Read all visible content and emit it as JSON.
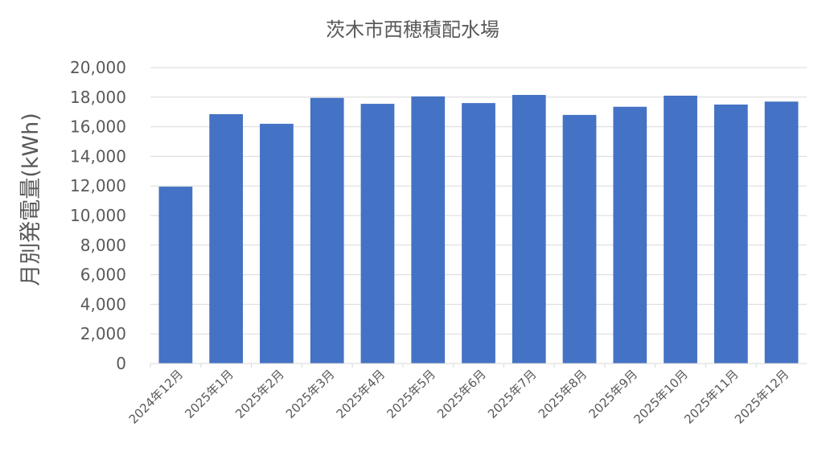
{
  "chart_data": {
    "type": "bar",
    "title": "茨木市西穂積配水場",
    "xlabel": "",
    "ylabel": "月別発電量(kWh)",
    "categories": [
      "2024年12月",
      "2025年1月",
      "2025年2月",
      "2025年3月",
      "2025年4月",
      "2025年5月",
      "2025年6月",
      "2025年7月",
      "2025年8月",
      "2025年9月",
      "2025年10月",
      "2025年11月",
      "2025年12月"
    ],
    "values": [
      11950,
      16850,
      16200,
      17950,
      17550,
      18050,
      17600,
      18150,
      16800,
      17350,
      18100,
      17500,
      17700
    ],
    "ylim": [
      0,
      20000
    ],
    "yticks": [
      "0",
      "2,000",
      "4,000",
      "6,000",
      "8,000",
      "10,000",
      "12,000",
      "14,000",
      "16,000",
      "18,000",
      "20,000"
    ],
    "grid": true,
    "legend": "none",
    "colors": {
      "bar": "#4472C4",
      "grid": "#D9D9D9",
      "text": "#595959"
    }
  }
}
